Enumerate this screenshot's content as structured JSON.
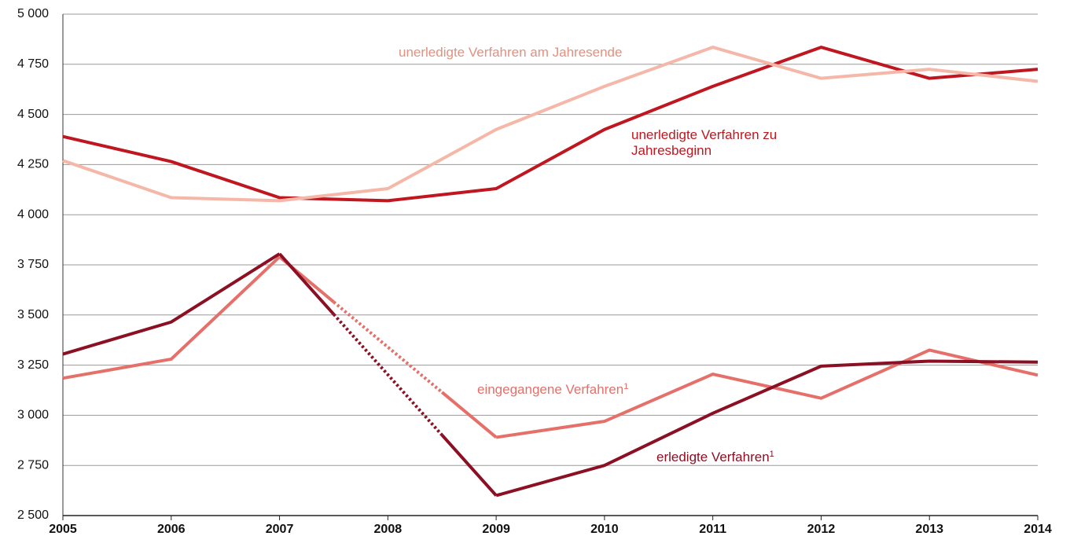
{
  "chart_data": {
    "type": "line",
    "categories": [
      "2005",
      "2006",
      "2007",
      "2008",
      "2009",
      "2010",
      "2011",
      "2012",
      "2013",
      "2014"
    ],
    "series": [
      {
        "name": "unerledigte Verfahren zu Jahresbeginn",
        "color": "#c0161f",
        "values": [
          4390,
          4265,
          4085,
          4070,
          4130,
          4425,
          4640,
          4835,
          4680,
          4725
        ]
      },
      {
        "name": "unerledigte Verfahren am Jahresende",
        "color": "#f5b7a7",
        "values": [
          4270,
          4085,
          4070,
          4130,
          4425,
          4640,
          4835,
          4680,
          4725,
          4665
        ]
      },
      {
        "name": "eingegangene Verfahren",
        "note": "1",
        "color": "#e5706a",
        "values": [
          3185,
          3280,
          3790,
          null,
          2890,
          2970,
          3205,
          3085,
          3325,
          3200
        ]
      },
      {
        "name": "erledigte Verfahren",
        "note": "1",
        "color": "#8b1024",
        "values": [
          3305,
          3465,
          3805,
          null,
          2600,
          2750,
          3010,
          3245,
          3270,
          3265
        ]
      }
    ],
    "ylim": [
      2500,
      5000
    ],
    "yticks": [
      {
        "value": 2500,
        "label": "2 500"
      },
      {
        "value": 2750,
        "label": "2 750"
      },
      {
        "value": 3000,
        "label": "3 000"
      },
      {
        "value": 3250,
        "label": "3 250"
      },
      {
        "value": 3500,
        "label": "3 500"
      },
      {
        "value": 3750,
        "label": "3 750"
      },
      {
        "value": 4000,
        "label": "4 000"
      },
      {
        "value": 4250,
        "label": "4 250"
      },
      {
        "value": 4500,
        "label": "4 500"
      },
      {
        "value": 4750,
        "label": "4 750"
      },
      {
        "value": 5000,
        "label": "5 000"
      }
    ],
    "grid": true
  }
}
